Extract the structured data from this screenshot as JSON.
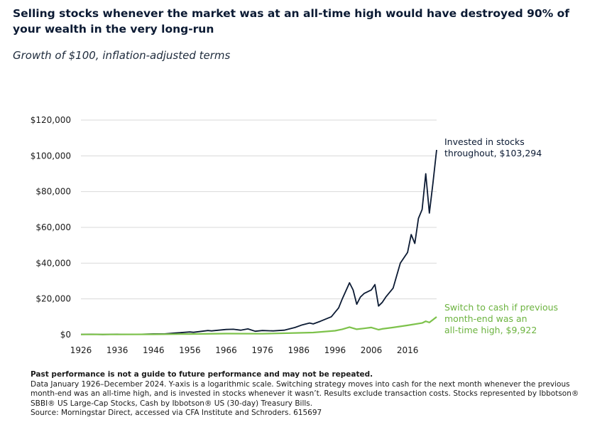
{
  "header": {
    "title": "Selling stocks whenever the market was at an all-time high would have destroyed 90% of your wealth in the very long-run",
    "subtitle": "Growth of $100, inflation-adjusted terms"
  },
  "footer": {
    "disclaimer": "Past performance is not a guide to future performance and may not be repeated.",
    "note": "Data January 1926–December 2024. Y-axis is a logarithmic scale. Switching strategy moves into cash for the next month whenever the previous month-end was an all-time high, and is invested in stocks whenever it wasn’t. Results exclude transaction costs. Stocks represented by Ibbotson® SBBI® US Large-Cap Stocks, Cash by Ibbotson® US (30-day) Treasury Bills.",
    "source": "Source: Morningstar Direct, accessed via CFA Institute and Schroders. 615697"
  },
  "colors": {
    "stocks": "#0b1a33",
    "switch": "#7dc24b",
    "grid": "#d9d9d9",
    "switch_text": "#6cb33f"
  },
  "chart_data": {
    "type": "line",
    "title": "",
    "xlabel": "",
    "ylabel": "",
    "xlim": [
      1926,
      2024
    ],
    "ylim": [
      0,
      120000
    ],
    "y_ticks": [
      0,
      20000,
      40000,
      60000,
      80000,
      100000,
      120000
    ],
    "y_tick_labels": [
      "$0",
      "$20,000",
      "$40,000",
      "$60,000",
      "$80,000",
      "$100,000",
      "$120,000"
    ],
    "x_ticks": [
      1926,
      1936,
      1946,
      1956,
      1966,
      1976,
      1986,
      1996,
      2006,
      2016
    ],
    "x_tick_labels": [
      "1926",
      "1936",
      "1946",
      "1956",
      "1966",
      "1976",
      "1986",
      "1996",
      "2006",
      "2016"
    ],
    "grid": true,
    "legend": "none",
    "series": [
      {
        "name": "Invested in stocks throughout",
        "color": "#0b1a33",
        "x": [
          1926,
          1929,
          1932,
          1936,
          1937,
          1942,
          1946,
          1949,
          1952,
          1956,
          1957,
          1961,
          1962,
          1966,
          1968,
          1970,
          1972,
          1974,
          1976,
          1979,
          1982,
          1985,
          1987,
          1989,
          1990,
          1992,
          1995,
          1997,
          1998,
          2000,
          2001,
          2002,
          2003,
          2004,
          2006,
          2007,
          2008,
          2009,
          2010,
          2012,
          2013,
          2014,
          2015,
          2016,
          2017,
          2018,
          2019,
          2020,
          2021,
          2022,
          2023,
          2024
        ],
        "y": [
          100,
          250,
          80,
          250,
          170,
          180,
          450,
          450,
          900,
          1500,
          1300,
          2300,
          2100,
          2900,
          3000,
          2500,
          3200,
          1900,
          2300,
          2100,
          2500,
          4000,
          5500,
          6500,
          6000,
          7500,
          10000,
          15000,
          20000,
          29000,
          25000,
          17000,
          21000,
          23000,
          25000,
          28000,
          16000,
          18000,
          21000,
          26000,
          33000,
          40000,
          43000,
          46000,
          56000,
          51000,
          65000,
          70000,
          90000,
          68000,
          85000,
          103294
        ]
      },
      {
        "name": "Switch to cash if previous month-end was an all-time high",
        "color": "#7dc24b",
        "x": [
          1926,
          1936,
          1946,
          1956,
          1966,
          1976,
          1986,
          1990,
          1996,
          1998,
          2000,
          2002,
          2004,
          2006,
          2008,
          2009,
          2012,
          2016,
          2020,
          2021,
          2022,
          2024
        ],
        "y": [
          100,
          120,
          200,
          350,
          600,
          500,
          1000,
          1200,
          2200,
          3000,
          4200,
          3000,
          3500,
          4000,
          2800,
          3200,
          4000,
          5200,
          6500,
          7500,
          6800,
          9922
        ]
      }
    ],
    "annotations": [
      {
        "series": "stocks",
        "lines": [
          "Invested in stocks",
          "throughout, $103,294"
        ]
      },
      {
        "series": "switch",
        "lines": [
          "Switch to cash if previous",
          "month-end was an",
          "all-time high, $9,922"
        ]
      }
    ]
  }
}
